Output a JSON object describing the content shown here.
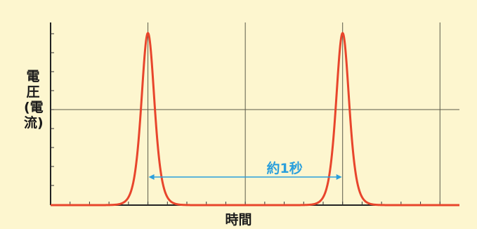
{
  "chart_data": {
    "type": "line",
    "title": "",
    "xlabel": "時間",
    "ylabel": "電圧(電流)",
    "annotation": "約1秒",
    "series": [
      {
        "color": "#e8452c",
        "peaks": [
          0.5,
          1.5
        ],
        "peak_value": 1.0,
        "baseline": 0.0
      }
    ],
    "xlim": [
      0,
      2.1
    ],
    "ylim": [
      0,
      1.0
    ],
    "grid": true,
    "colors": {
      "background": "#fdf6cf",
      "curve": "#e8452c",
      "annotation": "#2a9fdc",
      "grid": "#5a5a4a"
    }
  }
}
